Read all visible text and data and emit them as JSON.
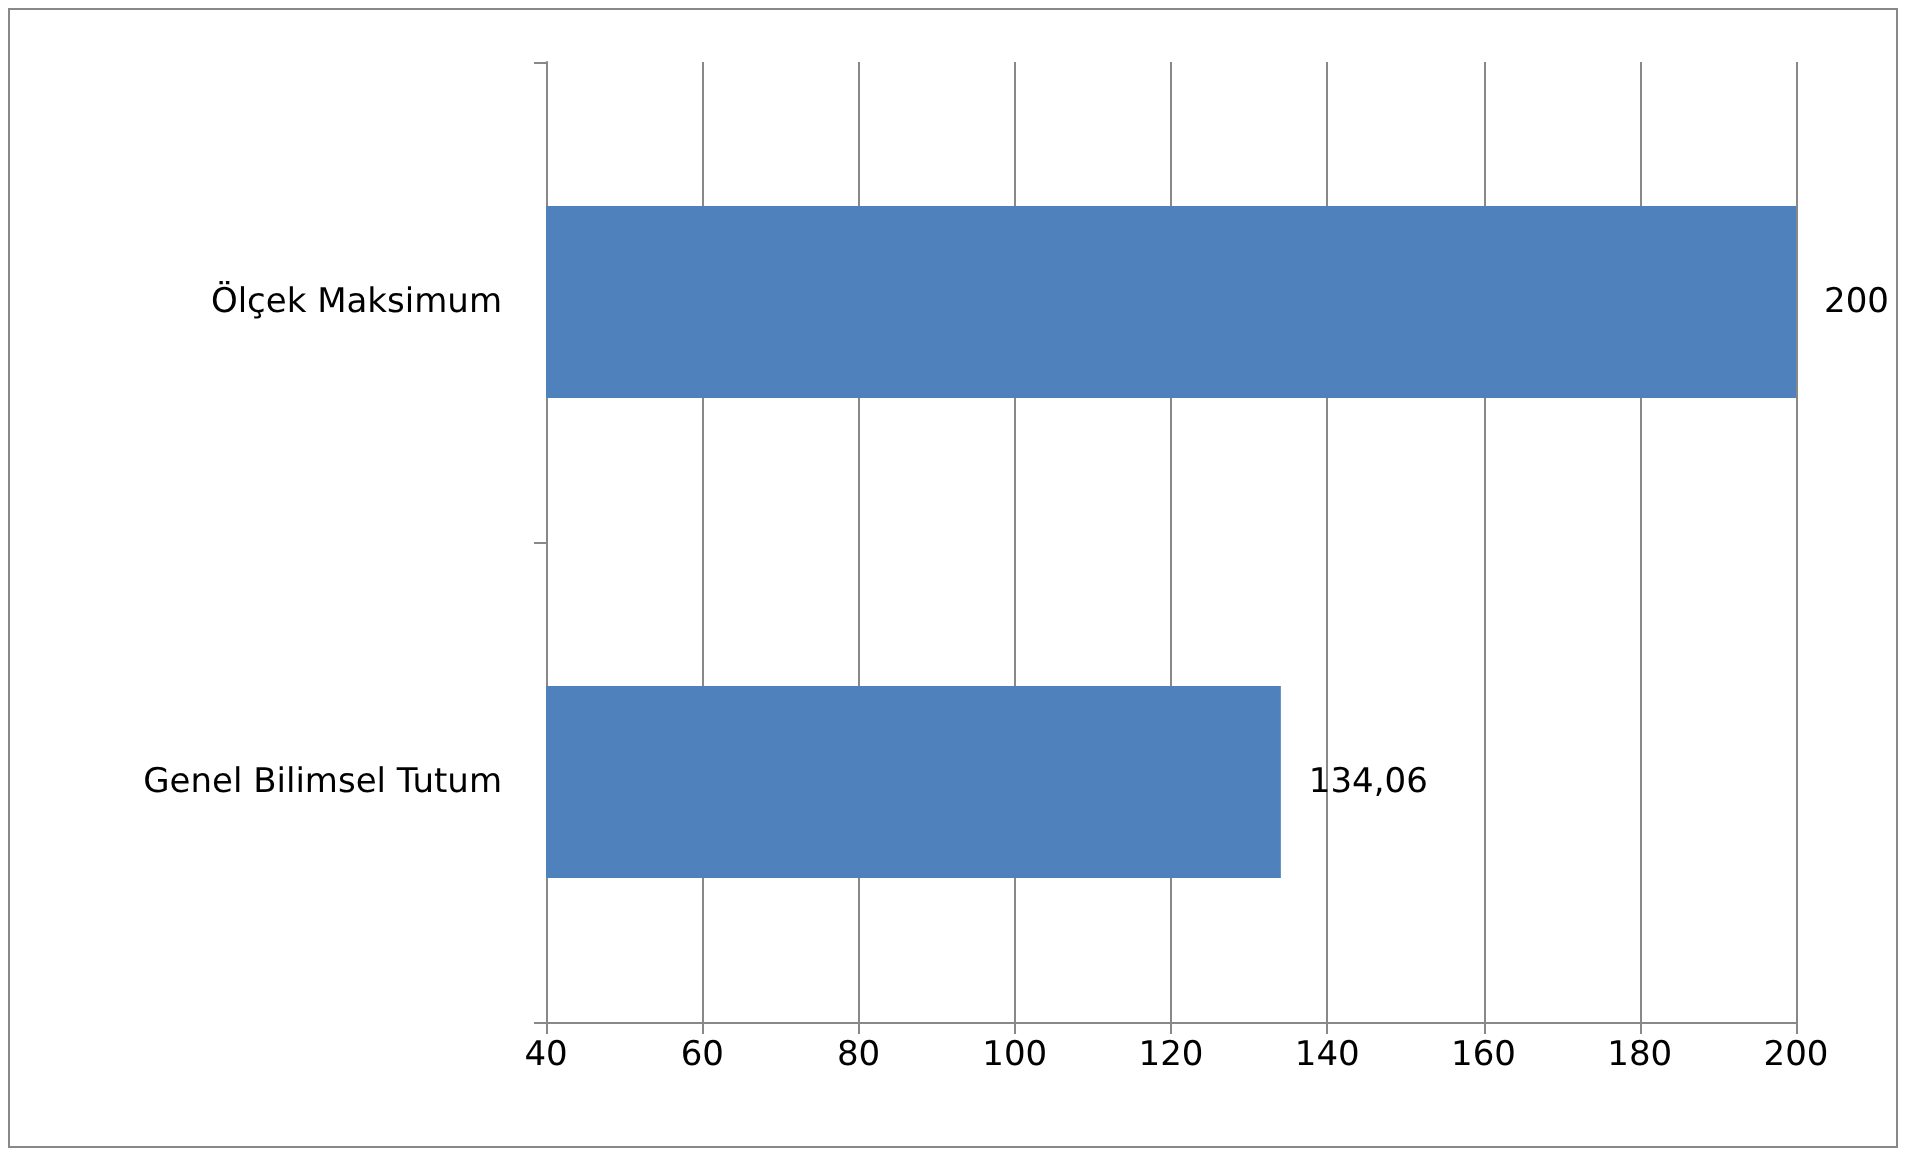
{
  "chart_data": {
    "type": "bar",
    "orientation": "horizontal",
    "categories": [
      "Ölçek Maksimum",
      "Genel Bilimsel Tutum"
    ],
    "values": [
      200,
      134.06
    ],
    "value_labels": [
      "200",
      "134,06"
    ],
    "color": "#4f81bd",
    "xlim": [
      40,
      200
    ],
    "xticks": [
      40,
      60,
      80,
      100,
      120,
      140,
      160,
      180,
      200
    ],
    "grid": "x"
  }
}
